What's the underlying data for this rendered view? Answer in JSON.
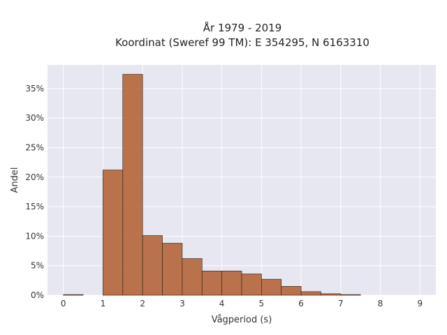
{
  "chart_data": {
    "type": "bar",
    "title_lines": [
      "År 1979 - 2019",
      "Koordinat (Sweref 99 TM): E 354295, N 6163310"
    ],
    "xlabel": "Vågperiod (s)",
    "ylabel": "Andel",
    "xlim": [
      -0.4,
      9.4
    ],
    "ylim": [
      0,
      39
    ],
    "x_ticks": [
      0,
      1,
      2,
      3,
      4,
      5,
      6,
      7,
      8,
      9
    ],
    "y_ticks": [
      0,
      5,
      10,
      15,
      20,
      25,
      30,
      35
    ],
    "y_tick_labels": [
      "0%",
      "5%",
      "10%",
      "15%",
      "20%",
      "25%",
      "30%",
      "35%"
    ],
    "bin_width": 0.5,
    "bins": [
      {
        "x0": 0.0,
        "value": 0.1
      },
      {
        "x0": 0.5,
        "value": 0.0
      },
      {
        "x0": 1.0,
        "value": 21.2
      },
      {
        "x0": 1.5,
        "value": 37.4
      },
      {
        "x0": 2.0,
        "value": 10.1
      },
      {
        "x0": 2.5,
        "value": 8.8
      },
      {
        "x0": 3.0,
        "value": 6.2
      },
      {
        "x0": 3.5,
        "value": 4.1
      },
      {
        "x0": 4.0,
        "value": 4.1
      },
      {
        "x0": 4.5,
        "value": 3.6
      },
      {
        "x0": 5.0,
        "value": 2.7
      },
      {
        "x0": 5.5,
        "value": 1.5
      },
      {
        "x0": 6.0,
        "value": 0.6
      },
      {
        "x0": 6.5,
        "value": 0.25
      },
      {
        "x0": 7.0,
        "value": 0.1
      },
      {
        "x0": 7.5,
        "value": 0.0
      },
      {
        "x0": 8.0,
        "value": 0.0
      },
      {
        "x0": 8.5,
        "value": 0.0
      }
    ],
    "grid": true,
    "colors": {
      "bar_fill": "#b5653a",
      "bar_edge": "#3a2a20",
      "plot_bg": "#e6e7f0",
      "grid": "#ffffff"
    }
  }
}
